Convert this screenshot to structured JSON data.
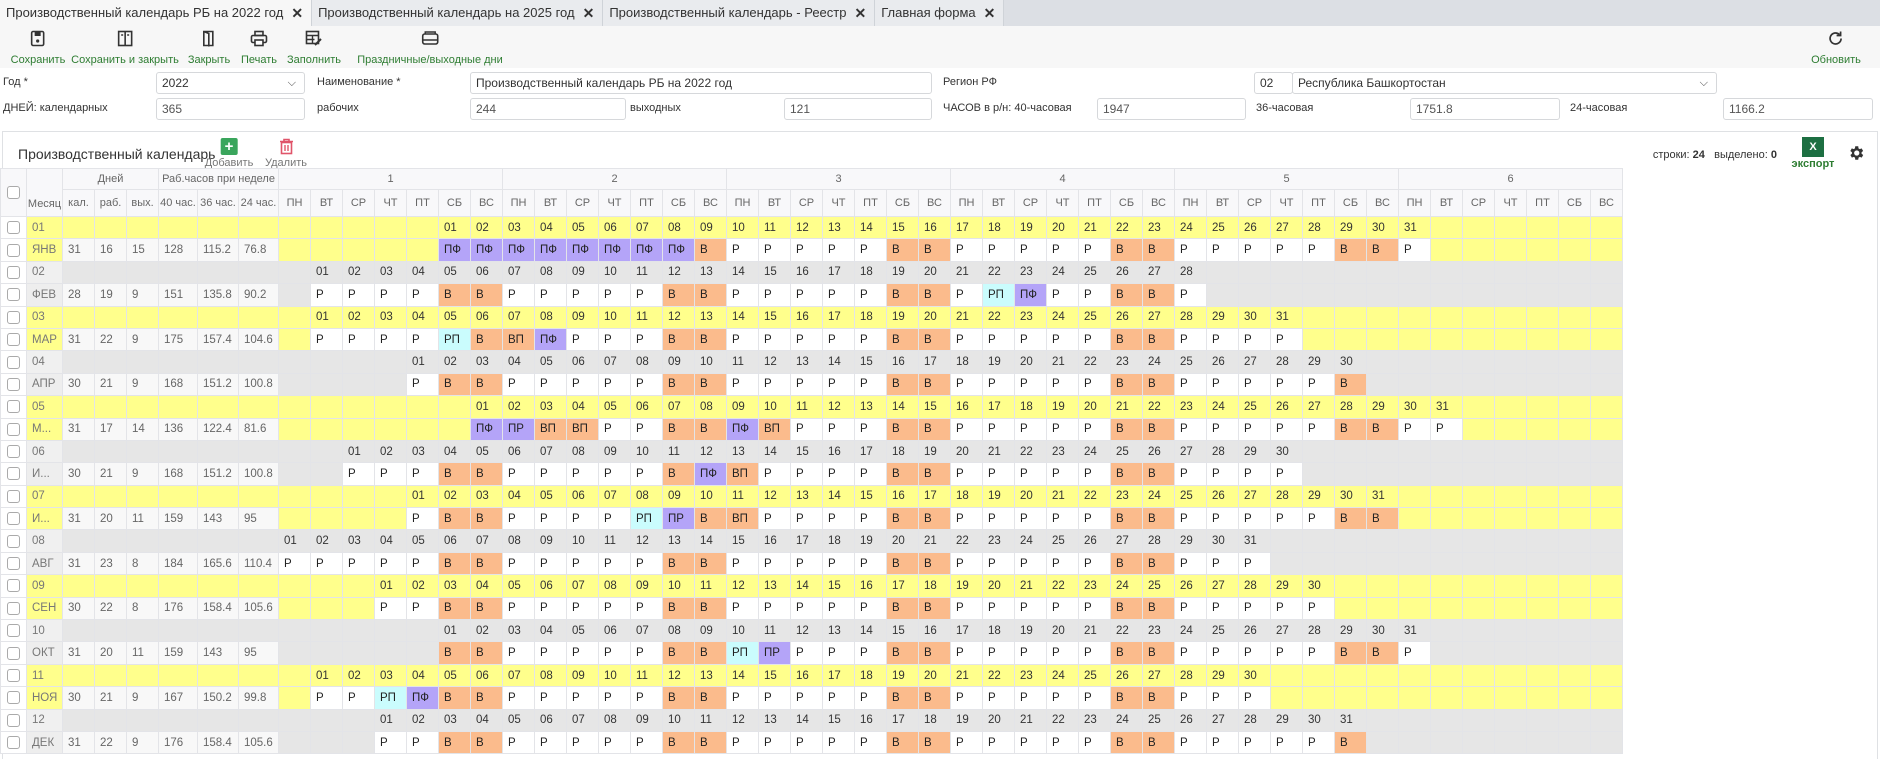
{
  "tabs": [
    {
      "label": "Производственный календарь РБ на 2022 год",
      "active": true
    },
    {
      "label": "Производственный календарь на 2025 год"
    },
    {
      "label": "Производственный календарь - Реестр"
    },
    {
      "label": "Главная форма"
    }
  ],
  "toolbar": {
    "save": "Сохранить",
    "save_close": "Сохранить и закрыть",
    "close": "Закрыть",
    "print": "Печать",
    "fill": "Заполнить",
    "holidays": "Праздничные/выходные дни",
    "refresh": "Обновить"
  },
  "form": {
    "year_label": "Год *",
    "year": "2022",
    "name_label": "Наименование *",
    "name": "Производственный календарь РБ на 2022 год",
    "region_label": "Регион РФ",
    "region_code": "02",
    "region_name": "Республика Башкортостан",
    "days_cal_label": "ДНЕЙ: календарных",
    "days_cal": "365",
    "days_work_label": "рабочих",
    "days_work": "244",
    "days_off_label": "выходных",
    "days_off": "121",
    "h40_label": "ЧАСОВ в р/н: 40-часовая",
    "h40": "1947",
    "h36_label": "36-часовая",
    "h36": "1751.8",
    "h24_label": "24-часовая",
    "h24": "1166.2"
  },
  "grid": {
    "title": "Производственный календарь",
    "add": "Добавить",
    "delete": "Удалить",
    "rows_label": "строки:",
    "rows": "24",
    "selected_label": "выделено:",
    "selected": "0",
    "export": "экспорт",
    "export_icon": "X",
    "headers": {
      "month": "Месяц",
      "days": "Дней",
      "hours": "Раб.часов при неделе",
      "kal": "кал.",
      "rab": "раб.",
      "vyh": "вых.",
      "h40": "40 час.",
      "h36": "36 час.",
      "h24": "24 час.",
      "weeks": [
        "1",
        "2",
        "3",
        "4",
        "5",
        "6"
      ],
      "weekdays": [
        "ПН",
        "ВТ",
        "СР",
        "ЧТ",
        "ПТ",
        "СБ",
        "ВС"
      ]
    },
    "type_colors": {
      "Р": "#ffffff",
      "В": "#fbbb8c",
      "ВП": "#fbbb8c",
      "ПФ": "#b4a4f8",
      "ПР": "#b4a4f8",
      "РП": "#cafcfd"
    },
    "row_colors": {
      "odd": "#ffff8c",
      "even": "#e6e6e6"
    },
    "months": [
      {
        "num": "01",
        "name": "ЯНВ",
        "kal": "31",
        "rab": "16",
        "vyh": "15",
        "h40": "128",
        "h36": "115.2",
        "h24": "76.8",
        "types": [
          "ПФ",
          "ПФ",
          "ПФ",
          "ПФ",
          "ПФ",
          "ПФ",
          "ПФ",
          "ПФ",
          "В",
          "Р",
          "Р",
          "Р",
          "Р",
          "Р",
          "В",
          "В",
          "Р",
          "Р",
          "Р",
          "Р",
          "Р",
          "В",
          "В",
          "Р",
          "Р",
          "Р",
          "Р",
          "Р",
          "В",
          "В",
          "Р"
        ]
      },
      {
        "num": "02",
        "name": "ФЕВ",
        "kal": "28",
        "rab": "19",
        "vyh": "9",
        "h40": "151",
        "h36": "135.8",
        "h24": "90.2",
        "types": [
          "Р",
          "Р",
          "Р",
          "Р",
          "В",
          "В",
          "Р",
          "Р",
          "Р",
          "Р",
          "Р",
          "В",
          "В",
          "Р",
          "Р",
          "Р",
          "Р",
          "Р",
          "В",
          "В",
          "Р",
          "РП",
          "ПФ",
          "Р",
          "Р",
          "В",
          "В",
          "Р"
        ]
      },
      {
        "num": "03",
        "name": "МАР",
        "kal": "31",
        "rab": "22",
        "vyh": "9",
        "h40": "175",
        "h36": "157.4",
        "h24": "104.6",
        "types": [
          "Р",
          "Р",
          "Р",
          "Р",
          "РП",
          "В",
          "ВП",
          "ПФ",
          "Р",
          "Р",
          "Р",
          "В",
          "В",
          "Р",
          "Р",
          "Р",
          "Р",
          "Р",
          "В",
          "В",
          "Р",
          "Р",
          "Р",
          "Р",
          "Р",
          "В",
          "В",
          "Р",
          "Р",
          "Р",
          "Р"
        ]
      },
      {
        "num": "04",
        "name": "АПР",
        "kal": "30",
        "rab": "21",
        "vyh": "9",
        "h40": "168",
        "h36": "151.2",
        "h24": "100.8",
        "types": [
          "Р",
          "В",
          "В",
          "Р",
          "Р",
          "Р",
          "Р",
          "Р",
          "В",
          "В",
          "Р",
          "Р",
          "Р",
          "Р",
          "Р",
          "В",
          "В",
          "Р",
          "Р",
          "Р",
          "Р",
          "Р",
          "В",
          "В",
          "Р",
          "Р",
          "Р",
          "Р",
          "Р",
          "В"
        ]
      },
      {
        "num": "05",
        "name": "М...",
        "kal": "31",
        "rab": "17",
        "vyh": "14",
        "h40": "136",
        "h36": "122.4",
        "h24": "81.6",
        "types": [
          "ПФ",
          "ПР",
          "ВП",
          "ВП",
          "Р",
          "Р",
          "В",
          "В",
          "ПФ",
          "ВП",
          "Р",
          "Р",
          "Р",
          "В",
          "В",
          "Р",
          "Р",
          "Р",
          "Р",
          "Р",
          "В",
          "В",
          "Р",
          "Р",
          "Р",
          "Р",
          "Р",
          "В",
          "В",
          "Р",
          "Р"
        ]
      },
      {
        "num": "06",
        "name": "И...",
        "kal": "30",
        "rab": "21",
        "vyh": "9",
        "h40": "168",
        "h36": "151.2",
        "h24": "100.8",
        "types": [
          "Р",
          "Р",
          "Р",
          "В",
          "В",
          "Р",
          "Р",
          "Р",
          "Р",
          "Р",
          "В",
          "ПФ",
          "ВП",
          "Р",
          "Р",
          "Р",
          "Р",
          "В",
          "В",
          "Р",
          "Р",
          "Р",
          "Р",
          "Р",
          "В",
          "В",
          "Р",
          "Р",
          "Р",
          "Р"
        ]
      },
      {
        "num": "07",
        "name": "И...",
        "kal": "31",
        "rab": "20",
        "vyh": "11",
        "h40": "159",
        "h36": "143",
        "h24": "95",
        "types": [
          "Р",
          "В",
          "В",
          "Р",
          "Р",
          "Р",
          "Р",
          "РП",
          "ПР",
          "В",
          "ВП",
          "Р",
          "Р",
          "Р",
          "Р",
          "В",
          "В",
          "Р",
          "Р",
          "Р",
          "Р",
          "Р",
          "В",
          "В",
          "Р",
          "Р",
          "Р",
          "Р",
          "Р",
          "В",
          "В"
        ]
      },
      {
        "num": "08",
        "name": "АВГ",
        "kal": "31",
        "rab": "23",
        "vyh": "8",
        "h40": "184",
        "h36": "165.6",
        "h24": "110.4",
        "types": [
          "Р",
          "Р",
          "Р",
          "Р",
          "Р",
          "В",
          "В",
          "Р",
          "Р",
          "Р",
          "Р",
          "Р",
          "В",
          "В",
          "Р",
          "Р",
          "Р",
          "Р",
          "Р",
          "В",
          "В",
          "Р",
          "Р",
          "Р",
          "Р",
          "Р",
          "В",
          "В",
          "Р",
          "Р",
          "Р"
        ]
      },
      {
        "num": "09",
        "name": "СЕН",
        "kal": "30",
        "rab": "22",
        "vyh": "8",
        "h40": "176",
        "h36": "158.4",
        "h24": "105.6",
        "types": [
          "Р",
          "Р",
          "В",
          "В",
          "Р",
          "Р",
          "Р",
          "Р",
          "Р",
          "В",
          "В",
          "Р",
          "Р",
          "Р",
          "Р",
          "Р",
          "В",
          "В",
          "Р",
          "Р",
          "Р",
          "Р",
          "Р",
          "В",
          "В",
          "Р",
          "Р",
          "Р",
          "Р",
          "Р"
        ]
      },
      {
        "num": "10",
        "name": "ОКТ",
        "kal": "31",
        "rab": "20",
        "vyh": "11",
        "h40": "159",
        "h36": "143",
        "h24": "95",
        "types": [
          "В",
          "В",
          "Р",
          "Р",
          "Р",
          "Р",
          "Р",
          "В",
          "В",
          "РП",
          "ПР",
          "Р",
          "Р",
          "Р",
          "В",
          "В",
          "Р",
          "Р",
          "Р",
          "Р",
          "Р",
          "В",
          "В",
          "Р",
          "Р",
          "Р",
          "Р",
          "Р",
          "В",
          "В",
          "Р"
        ]
      },
      {
        "num": "11",
        "name": "НОЯ",
        "kal": "30",
        "rab": "21",
        "vyh": "9",
        "h40": "167",
        "h36": "150.2",
        "h24": "99.8",
        "types": [
          "Р",
          "Р",
          "РП",
          "ПФ",
          "В",
          "В",
          "Р",
          "Р",
          "Р",
          "Р",
          "Р",
          "В",
          "В",
          "Р",
          "Р",
          "Р",
          "Р",
          "Р",
          "В",
          "В",
          "Р",
          "Р",
          "Р",
          "Р",
          "Р",
          "В",
          "В",
          "Р",
          "Р",
          "Р"
        ]
      },
      {
        "num": "12",
        "name": "ДЕК",
        "kal": "31",
        "rab": "22",
        "vyh": "9",
        "h40": "176",
        "h36": "158.4",
        "h24": "105.6",
        "types": [
          "Р",
          "Р",
          "В",
          "В",
          "Р",
          "Р",
          "Р",
          "Р",
          "Р",
          "В",
          "В",
          "Р",
          "Р",
          "Р",
          "Р",
          "Р",
          "В",
          "В",
          "Р",
          "Р",
          "Р",
          "Р",
          "Р",
          "В",
          "В",
          "Р",
          "Р",
          "Р",
          "Р",
          "Р",
          "В"
        ]
      }
    ]
  }
}
